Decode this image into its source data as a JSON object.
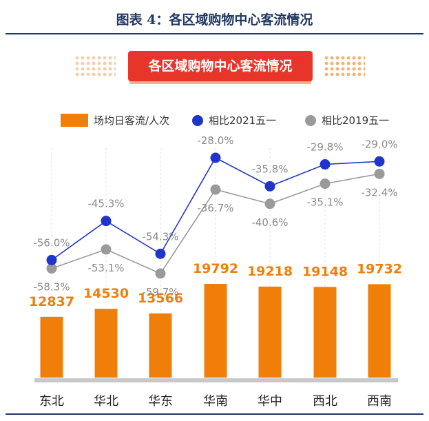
{
  "figure_title": "图表 4：各区域购物中心客流情况",
  "banner_title": "各区域购物中心客流情况",
  "colors": {
    "bar": "#f07f09",
    "blue": "#1f35c9",
    "gray": "#9a9a9a",
    "banner": "#e8352a",
    "title": "#1f3864"
  },
  "chart_data": {
    "type": "bar",
    "title": "各区域购物中心客流情况",
    "categories": [
      "东北",
      "华北",
      "华东",
      "华南",
      "华中",
      "西北",
      "西南"
    ],
    "series": [
      {
        "name": "场均日客流/人次",
        "kind": "bar",
        "values": [
          12837,
          14530,
          13566,
          19792,
          19218,
          19148,
          19732
        ],
        "labels": [
          "12837",
          "14530",
          "13566",
          "19792",
          "19218",
          "19148",
          "19732"
        ]
      },
      {
        "name": "相比2021五一",
        "kind": "line",
        "values": [
          -56.0,
          -45.3,
          -54.3,
          -28.0,
          -35.8,
          -29.8,
          -29.0
        ],
        "labels": [
          "-56.0%",
          "-45.3%",
          "-54.3%",
          "-28.0%",
          "-35.8%",
          "-29.8%",
          "-29.0%"
        ]
      },
      {
        "name": "相比2019五一",
        "kind": "line",
        "values": [
          -58.3,
          -53.1,
          -59.7,
          -36.7,
          -40.6,
          -35.1,
          -32.4
        ],
        "labels": [
          "-58.3%",
          "-53.1%",
          "-59.7%",
          "-36.7%",
          "-40.6%",
          "-35.1%",
          "-32.4%"
        ]
      }
    ],
    "bar_axis_range": [
      0,
      22000
    ],
    "line_axis_range": [
      -62,
      -24
    ],
    "xlabel": "",
    "ylabel": "",
    "grid": "vertical dashed",
    "legend": "top"
  }
}
